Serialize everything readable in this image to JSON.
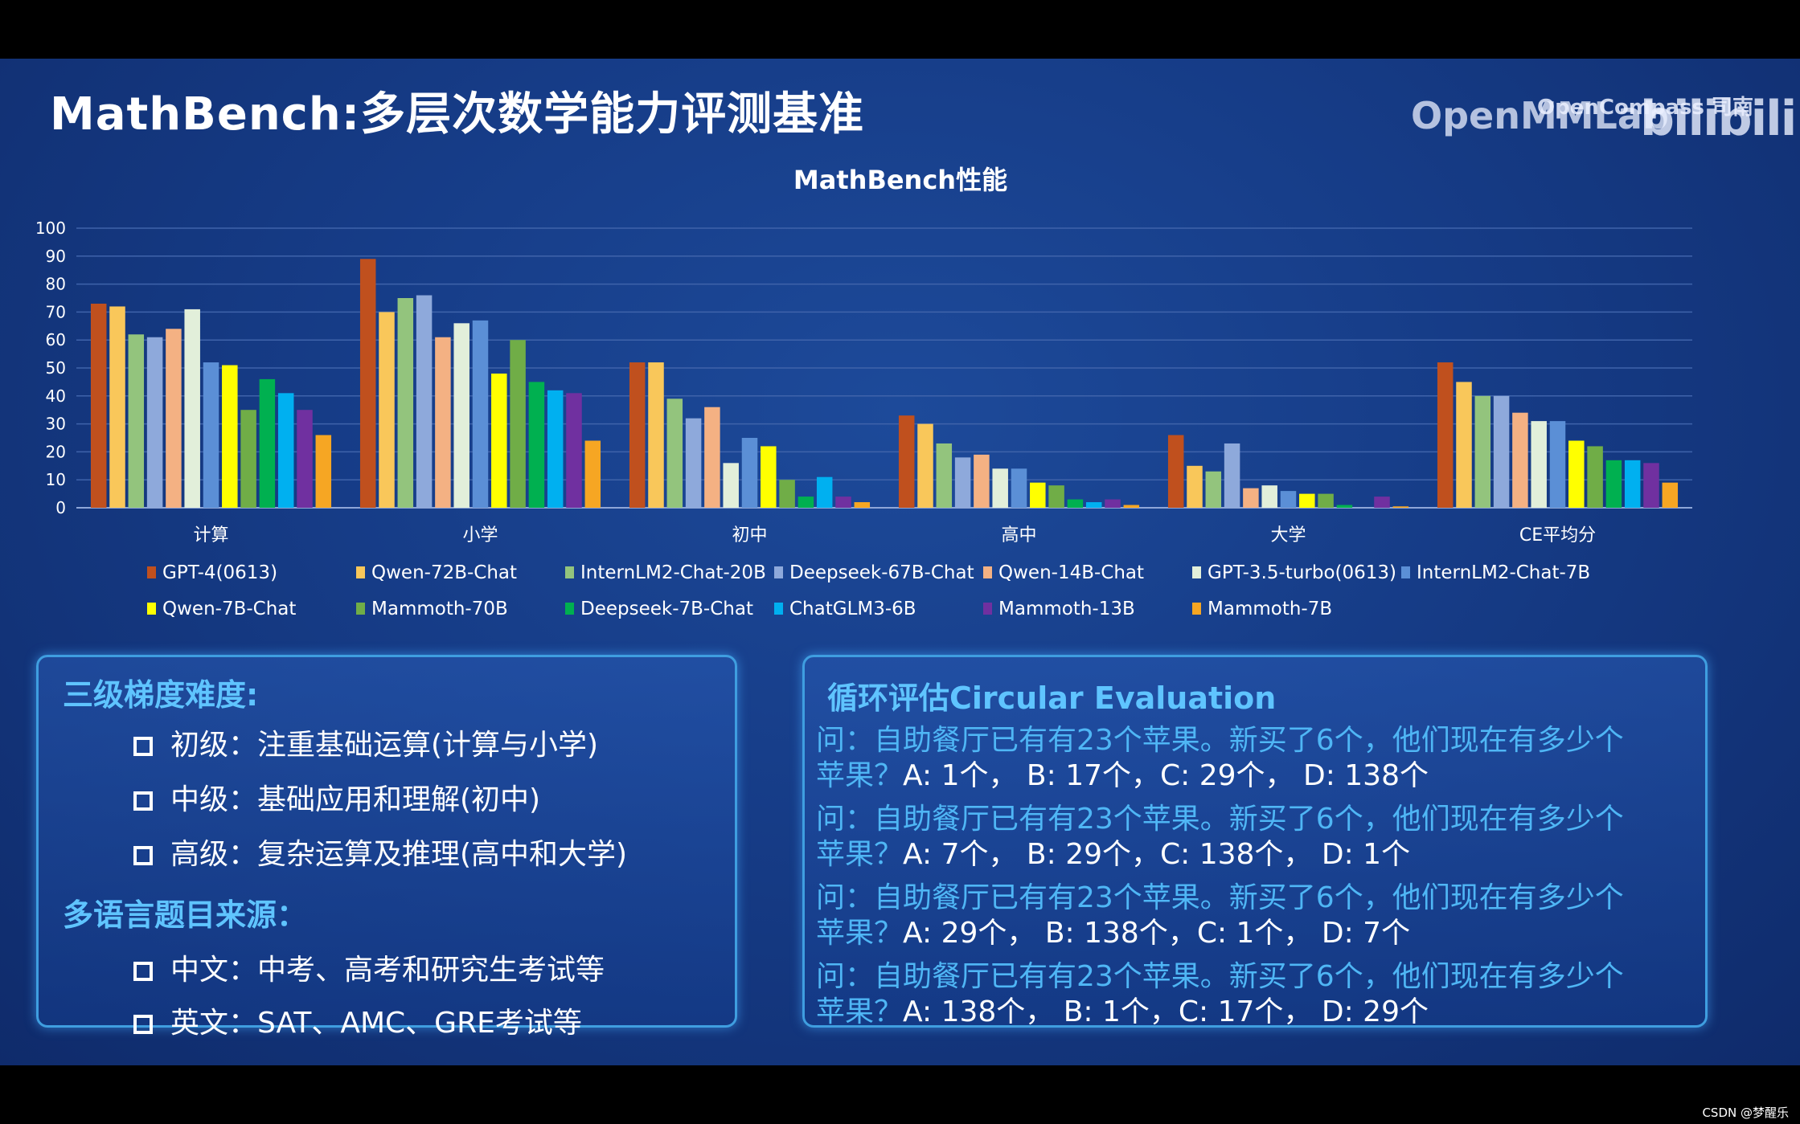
{
  "slide": {
    "title": "MathBench:多层次数学能力评测基准",
    "watermark_main": "OpenMMLab",
    "watermark_small": "OpenCompass 司南",
    "watermark_bili": "bilibili"
  },
  "chart_data": {
    "type": "bar",
    "title": "MathBench性能",
    "xlabel": "",
    "ylabel": "",
    "ylim": [
      0,
      100
    ],
    "yticks": [
      "0",
      "10",
      "20",
      "30",
      "40",
      "50",
      "60",
      "70",
      "80",
      "90",
      "100"
    ],
    "grid": true,
    "legend_position": "bottom",
    "categories": [
      "计算",
      "小学",
      "初中",
      "高中",
      "大学",
      "CE平均分"
    ],
    "series": [
      {
        "name": "GPT-4(0613)",
        "color": "#c0501e",
        "values": [
          73,
          89,
          52,
          33,
          26,
          52
        ]
      },
      {
        "name": "Qwen-72B-Chat",
        "color": "#f9c75a",
        "values": [
          72,
          70,
          52,
          30,
          15,
          45
        ]
      },
      {
        "name": "InternLM2-Chat-20B",
        "color": "#93c47d",
        "values": [
          62,
          75,
          39,
          23,
          13,
          40
        ]
      },
      {
        "name": "Deepseek-67B-Chat",
        "color": "#8ea9db",
        "values": [
          61,
          76,
          32,
          18,
          23,
          40
        ]
      },
      {
        "name": "Qwen-14B-Chat",
        "color": "#f4b183",
        "values": [
          64,
          61,
          36,
          19,
          7,
          34
        ]
      },
      {
        "name": "GPT-3.5-turbo(0613)",
        "color": "#e2efda",
        "values": [
          71,
          66,
          16,
          14,
          8,
          31
        ]
      },
      {
        "name": "InternLM2-Chat-7B",
        "color": "#5b8fd6",
        "values": [
          52,
          67,
          25,
          14,
          6,
          31
        ]
      },
      {
        "name": "Qwen-7B-Chat",
        "color": "#ffff00",
        "values": [
          51,
          48,
          22,
          9,
          5,
          24
        ]
      },
      {
        "name": "Mammoth-70B",
        "color": "#70ad47",
        "values": [
          35,
          60,
          10,
          8,
          5,
          22
        ]
      },
      {
        "name": "Deepseek-7B-Chat",
        "color": "#00b050",
        "values": [
          46,
          45,
          4,
          3,
          1,
          17
        ]
      },
      {
        "name": "ChatGLM3-6B",
        "color": "#00b0f0",
        "values": [
          41,
          42,
          11,
          2,
          0,
          17
        ]
      },
      {
        "name": "Mammoth-13B",
        "color": "#7030a0",
        "values": [
          35,
          41,
          4,
          3,
          4,
          16
        ]
      },
      {
        "name": "Mammoth-7B",
        "color": "#f6a623",
        "values": [
          26,
          24,
          2,
          1,
          0.5,
          9
        ]
      }
    ]
  },
  "left_panel": {
    "heading1": "三级梯度难度:",
    "items1": [
      "初级：注重基础运算(计算与小学)",
      "中级：基础应用和理解(初中)",
      "高级：复杂运算及推理(高中和大学)"
    ],
    "heading2": "多语言题目来源：",
    "items2": [
      "中文：中考、高考和研究生考试等",
      "英文：SAT、AMC、GRE考试等"
    ]
  },
  "right_panel": {
    "heading": "循环评估Circular Evaluation",
    "questions": [
      {
        "line1": "问：自助餐厅已有有23个苹果。新买了6个，他们现在有多少个",
        "prefix2": "苹果？",
        "options": "A: 1个， B: 17个，C: 29个， D: 138个"
      },
      {
        "line1": "问：自助餐厅已有有23个苹果。新买了6个，他们现在有多少个",
        "prefix2": "苹果？",
        "options": "A: 7个， B: 29个，C: 138个， D: 1个"
      },
      {
        "line1": "问：自助餐厅已有有23个苹果。新买了6个，他们现在有多少个",
        "prefix2": "苹果？",
        "options": "A: 29个， B: 138个，C: 1个， D: 7个"
      },
      {
        "line1": "问：自助餐厅已有有23个苹果。新买了6个，他们现在有多少个",
        "prefix2": "苹果？",
        "options": "A: 138个， B: 1个，C: 17个， D: 29个"
      }
    ]
  },
  "footer": {
    "csdn": "CSDN @梦醒乐"
  }
}
